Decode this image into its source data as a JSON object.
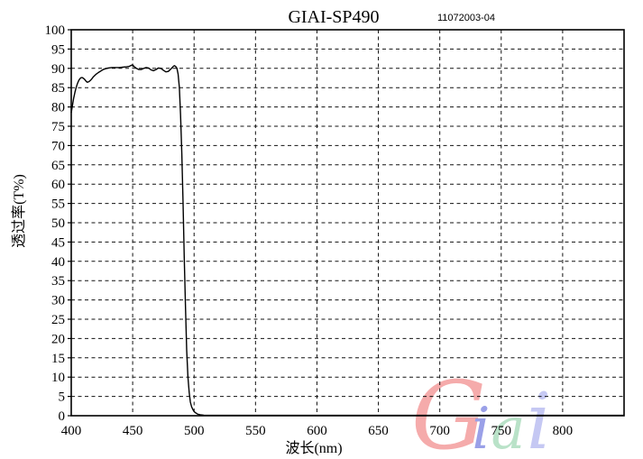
{
  "header": {
    "title": "GIAI-SP490",
    "code": "11072003-04"
  },
  "chart_data": {
    "type": "line",
    "title": "GIAI-SP490",
    "xlabel": "波长(nm)",
    "ylabel": "透过率(T%)",
    "xlim": [
      400,
      850
    ],
    "ylim": [
      0,
      100
    ],
    "x_ticks": [
      400,
      450,
      500,
      550,
      600,
      650,
      700,
      750,
      800
    ],
    "y_ticks": [
      0,
      5,
      10,
      15,
      20,
      25,
      30,
      35,
      40,
      45,
      50,
      55,
      60,
      65,
      70,
      75,
      80,
      85,
      90,
      95,
      100
    ],
    "grid": "dashed",
    "legend": "none",
    "line_color": "#000000",
    "series": [
      {
        "name": "transmission",
        "points": [
          [
            400,
            78.5
          ],
          [
            401,
            80.5
          ],
          [
            402,
            82.3
          ],
          [
            403,
            83.8
          ],
          [
            404,
            85.0
          ],
          [
            405,
            86.0
          ],
          [
            406,
            86.8
          ],
          [
            407,
            87.3
          ],
          [
            408,
            87.6
          ],
          [
            409,
            87.6
          ],
          [
            410,
            87.4
          ],
          [
            411,
            87.1
          ],
          [
            412,
            86.7
          ],
          [
            413,
            86.4
          ],
          [
            414,
            86.5
          ],
          [
            415,
            86.7
          ],
          [
            416,
            87.0
          ],
          [
            417,
            87.4
          ],
          [
            418,
            87.8
          ],
          [
            420,
            88.4
          ],
          [
            422,
            88.9
          ],
          [
            424,
            89.3
          ],
          [
            426,
            89.7
          ],
          [
            428,
            89.9
          ],
          [
            430,
            90.1
          ],
          [
            433,
            90.2
          ],
          [
            436,
            90.2
          ],
          [
            439,
            90.2
          ],
          [
            442,
            90.3
          ],
          [
            445,
            90.4
          ],
          [
            447,
            90.5
          ],
          [
            449,
            90.8
          ],
          [
            450,
            90.9
          ],
          [
            451,
            90.5
          ],
          [
            453,
            90.0
          ],
          [
            455,
            89.7
          ],
          [
            457,
            89.7
          ],
          [
            459,
            90.0
          ],
          [
            461,
            90.2
          ],
          [
            463,
            90.1
          ],
          [
            465,
            89.6
          ],
          [
            467,
            89.4
          ],
          [
            469,
            89.7
          ],
          [
            471,
            90.1
          ],
          [
            473,
            90.0
          ],
          [
            475,
            89.5
          ],
          [
            477,
            89.1
          ],
          [
            479,
            89.2
          ],
          [
            481,
            89.8
          ],
          [
            483,
            90.5
          ],
          [
            484,
            90.7
          ],
          [
            485,
            90.5
          ],
          [
            486,
            90.0
          ],
          [
            487,
            88.5
          ],
          [
            488,
            85.0
          ],
          [
            489,
            78.0
          ],
          [
            490,
            68.0
          ],
          [
            491,
            55.0
          ],
          [
            492,
            41.0
          ],
          [
            493,
            28.0
          ],
          [
            494,
            17.0
          ],
          [
            495,
            10.0
          ],
          [
            496,
            6.0
          ],
          [
            497,
            3.5
          ],
          [
            498,
            2.3
          ],
          [
            499,
            1.6
          ],
          [
            500,
            1.1
          ],
          [
            501,
            0.8
          ],
          [
            502,
            0.6
          ],
          [
            503,
            0.4
          ],
          [
            505,
            0.25
          ],
          [
            508,
            0.15
          ],
          [
            512,
            0.1
          ],
          [
            520,
            0.1
          ],
          [
            550,
            0.1
          ],
          [
            600,
            0.1
          ],
          [
            650,
            0.1
          ],
          [
            700,
            0.1
          ],
          [
            750,
            0.1
          ],
          [
            800,
            0.1
          ],
          [
            850,
            0.1
          ]
        ]
      }
    ]
  },
  "watermark": {
    "text": "Giai",
    "letters": [
      {
        "char": "G",
        "color": "#f5abab"
      },
      {
        "char": "i",
        "color": "#9aa0e8"
      },
      {
        "char": "a",
        "color": "#b9e2c8"
      },
      {
        "char": "i",
        "color": "#c5c8f3"
      }
    ]
  }
}
